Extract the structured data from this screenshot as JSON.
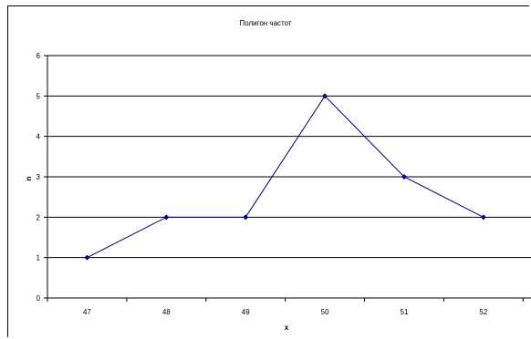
{
  "chart_data": {
    "type": "line",
    "title": "Полигон частот",
    "xlabel": "x",
    "ylabel": "n",
    "categories": [
      "47",
      "48",
      "49",
      "50",
      "51",
      "52"
    ],
    "series": [
      {
        "values": [
          1,
          2,
          2,
          5,
          3,
          2
        ],
        "color": "#000080"
      }
    ],
    "ylim": [
      0,
      6
    ],
    "yticks": [
      0,
      1,
      2,
      3,
      4,
      5,
      6
    ],
    "grid": true,
    "legend": "none"
  }
}
